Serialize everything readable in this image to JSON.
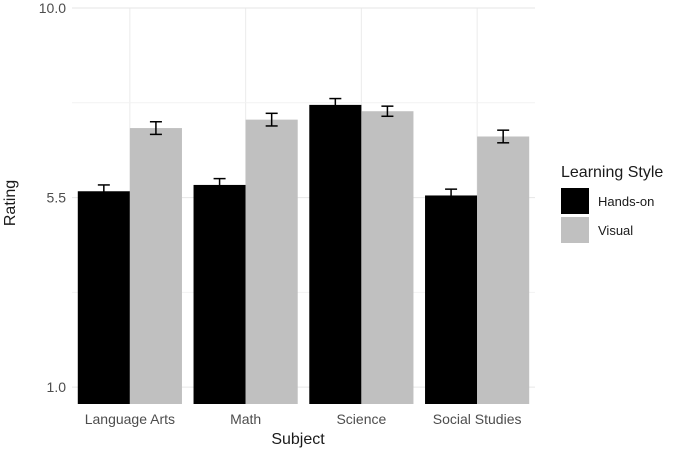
{
  "chart_data": {
    "type": "bar",
    "xlabel": "Subject",
    "ylabel": "Rating",
    "categories": [
      "Language Arts",
      "Math",
      "Science",
      "Social Studies"
    ],
    "ylim": [
      0.6,
      10.0
    ],
    "y_ticks": [
      1.0,
      5.5,
      10.0
    ],
    "y_tick_labels": [
      "1.0",
      "5.5",
      "10.0"
    ],
    "grid": true,
    "legend": {
      "title": "Learning Style",
      "position": "right"
    },
    "series": [
      {
        "name": "Hands-on",
        "color": "#000000",
        "values": [
          5.65,
          5.8,
          7.7,
          5.55
        ],
        "error": [
          0.15,
          0.15,
          0.15,
          0.15
        ]
      },
      {
        "name": "Visual",
        "color": "#c0c0c0",
        "values": [
          7.15,
          7.35,
          7.55,
          6.95
        ],
        "error": [
          0.15,
          0.15,
          0.12,
          0.15
        ]
      }
    ]
  }
}
